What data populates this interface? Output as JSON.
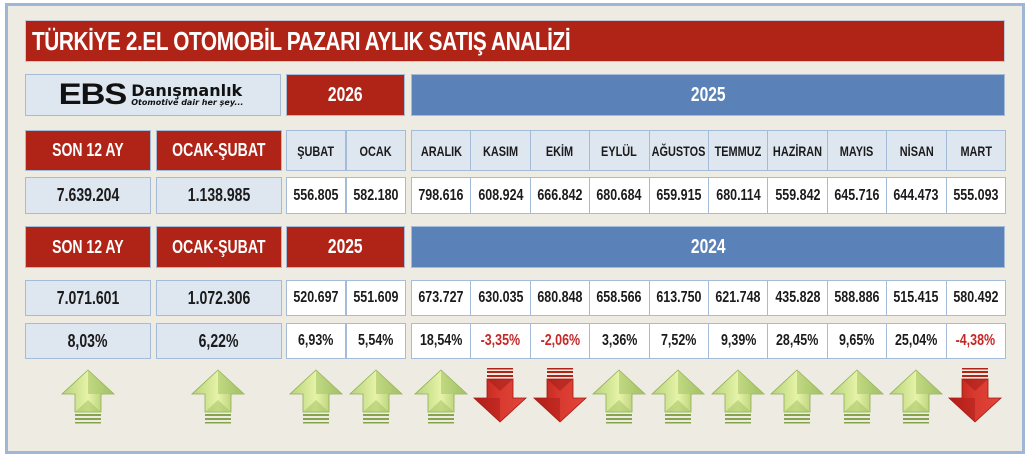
{
  "title": "TÜRKİYE 2.EL OTOMOBİL PAZARI AYLIK SATIŞ ANALİZİ",
  "logo": {
    "brand": "EBS",
    "name": "Danışmanlık",
    "tagline": "Otomotive dair her şey..."
  },
  "colors": {
    "red": "#b02418",
    "blue": "#5b82b8",
    "light": "#dee6f0",
    "up_arrow": "#9fc25a",
    "down_arrow": "#cc2a20",
    "negative_text": "#c62828"
  },
  "section1": {
    "year_current": "2026",
    "year_previous": "2025",
    "summary_headers": [
      "SON 12 AY",
      "OCAK-ŞUBAT"
    ],
    "summary_values": [
      "7.639.204",
      "1.138.985"
    ],
    "months_current": [
      "ŞUBAT",
      "OCAK"
    ],
    "values_current": [
      "556.805",
      "582.180"
    ],
    "months_previous": [
      "ARALIK",
      "KASIM",
      "EKİM",
      "EYLÜL",
      "AĞUSTOS",
      "TEMMUZ",
      "HAZİRAN",
      "MAYIS",
      "NİSAN",
      "MART"
    ],
    "values_previous": [
      "798.616",
      "608.924",
      "666.842",
      "680.684",
      "659.915",
      "680.114",
      "559.842",
      "645.716",
      "644.473",
      "555.093"
    ]
  },
  "section2": {
    "year_current": "2025",
    "year_previous": "2024",
    "summary_headers": [
      "SON 12 AY",
      "OCAK-ŞUBAT"
    ],
    "summary_values": [
      "7.071.601",
      "1.072.306"
    ],
    "summary_changes": [
      "8,03%",
      "6,22%"
    ],
    "values_current": [
      "520.697",
      "551.609"
    ],
    "changes_current": [
      "6,93%",
      "5,54%"
    ],
    "values_previous": [
      "673.727",
      "630.035",
      "680.848",
      "658.566",
      "613.750",
      "621.748",
      "435.828",
      "588.886",
      "515.415",
      "580.492"
    ],
    "changes_previous": [
      "18,54%",
      "-3,35%",
      "-2,06%",
      "3,36%",
      "7,52%",
      "9,39%",
      "28,45%",
      "9,65%",
      "25,04%",
      "-4,38%"
    ]
  },
  "arrows": {
    "summary": [
      "up",
      "up"
    ],
    "current": [
      "up",
      "up"
    ],
    "previous": [
      "up",
      "down",
      "down",
      "up",
      "up",
      "up",
      "up",
      "up",
      "up",
      "down"
    ]
  }
}
